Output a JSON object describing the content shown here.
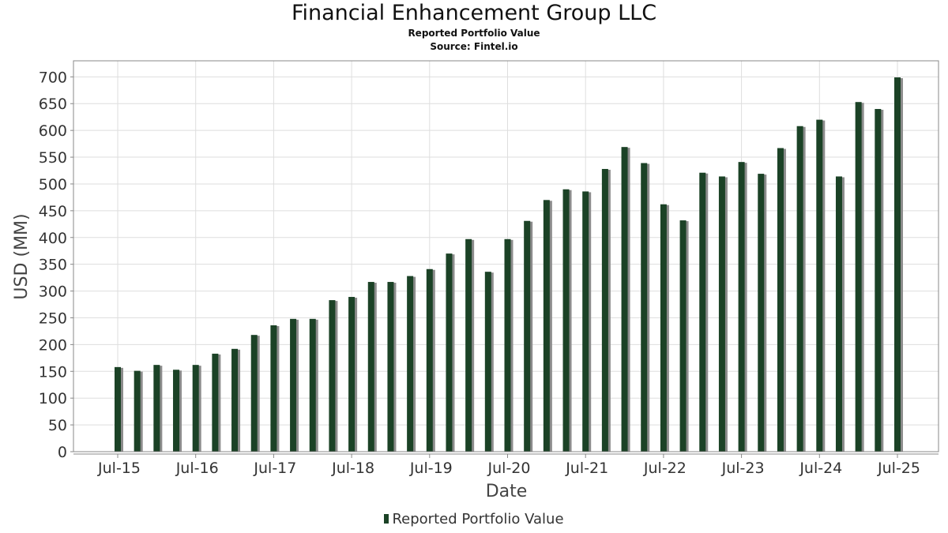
{
  "title": "Financial Enhancement Group LLC",
  "subtitle": "Reported Portfolio Value",
  "source": "Source: Fintel.io",
  "colors": {
    "bar": "#1b4226",
    "bar_shadow": "#8c8c8c",
    "grid": "#dedede",
    "axis": "#888888"
  },
  "chart_data": {
    "type": "bar",
    "title": "Financial Enhancement Group LLC",
    "subtitle": "Reported Portfolio Value",
    "xlabel": "Date",
    "ylabel": "USD (MM)",
    "ylim": [
      0,
      730
    ],
    "yticks": [
      0,
      50,
      100,
      150,
      200,
      250,
      300,
      350,
      400,
      450,
      500,
      550,
      600,
      650,
      700
    ],
    "xtick_labels": [
      "Jul-15",
      "Jul-16",
      "Jul-17",
      "Jul-18",
      "Jul-19",
      "Jul-20",
      "Jul-21",
      "Jul-22",
      "Jul-23",
      "Jul-24",
      "Jul-25"
    ],
    "grid": true,
    "legend_position": "bottom",
    "series": [
      {
        "name": "Reported Portfolio Value",
        "values": [
          158,
          151,
          162,
          153,
          162,
          183,
          192,
          218,
          236,
          248,
          248,
          283,
          289,
          317,
          317,
          328,
          341,
          370,
          397,
          336,
          397,
          431,
          470,
          490,
          486,
          528,
          569,
          539,
          462,
          432,
          521,
          514,
          541,
          519,
          567,
          608,
          620,
          514,
          653,
          640,
          699
        ]
      }
    ]
  }
}
